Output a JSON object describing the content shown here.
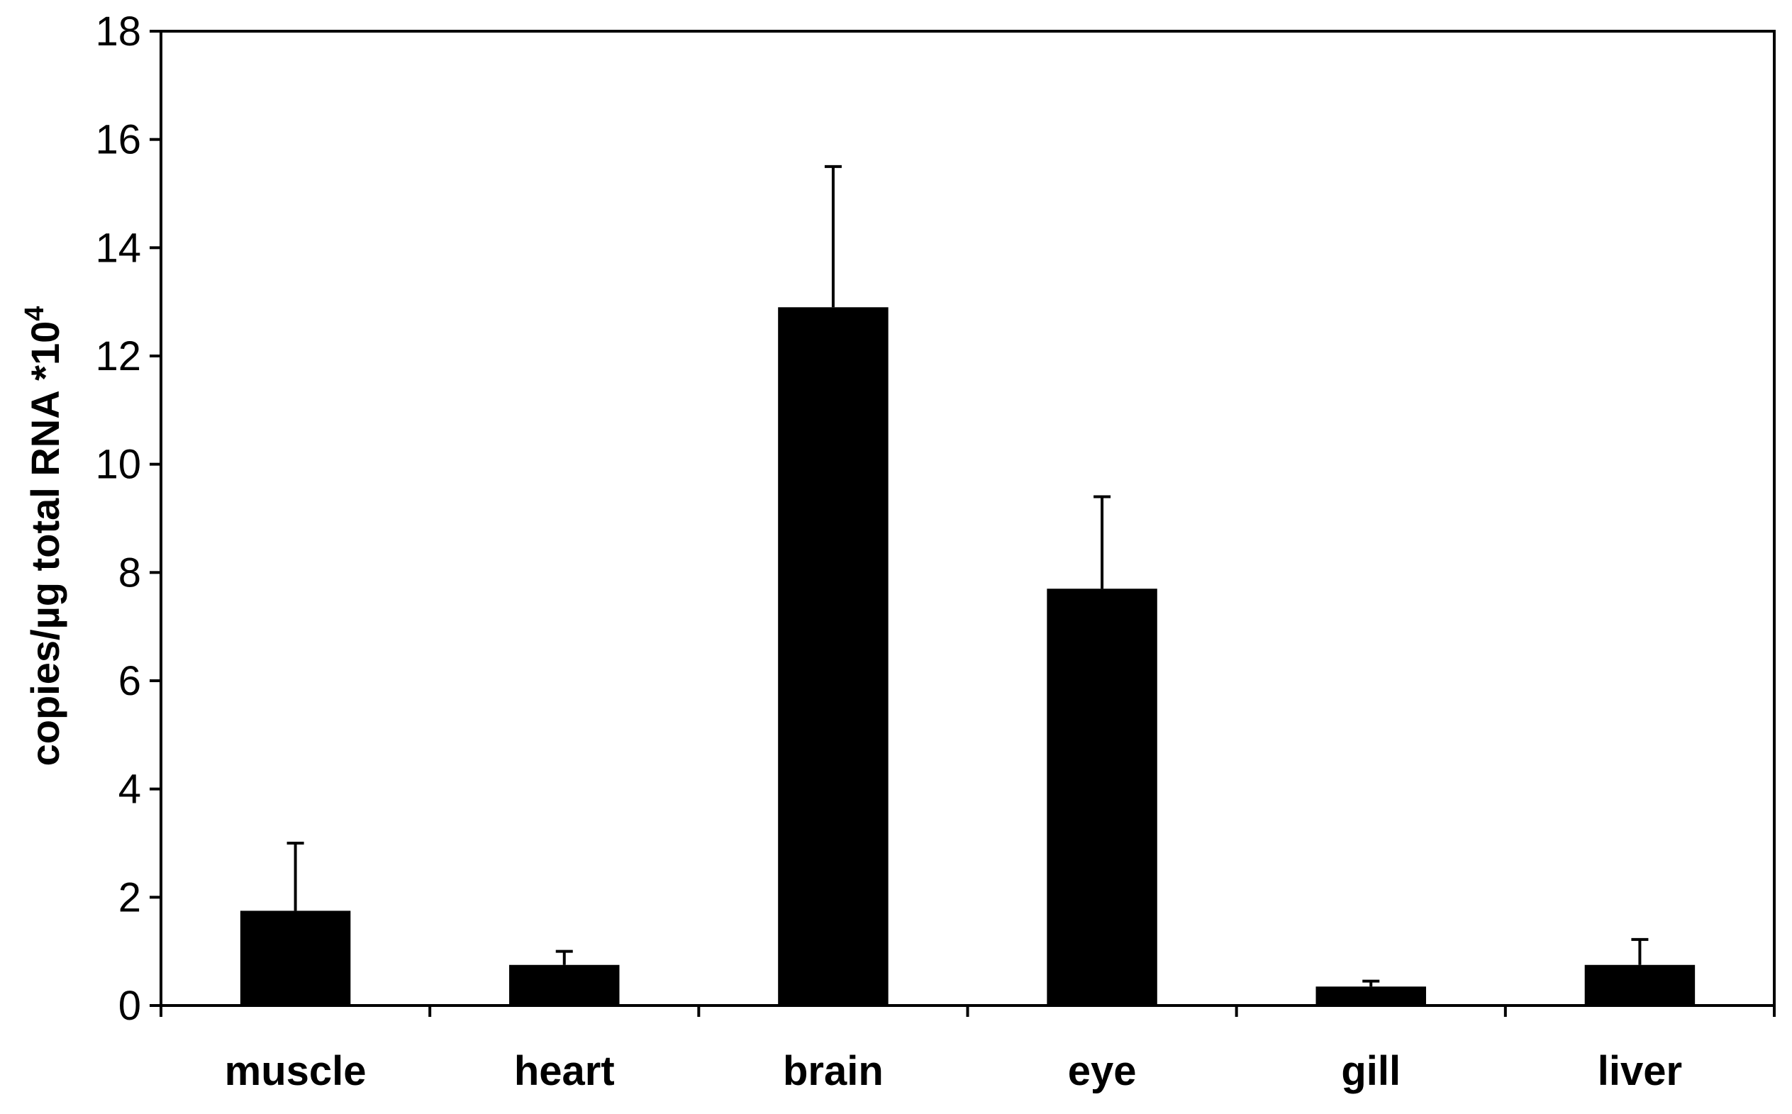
{
  "chart_data": {
    "type": "bar",
    "title": "",
    "xlabel": "",
    "ylabel": {
      "prefix": "copies/µg total RNA *10",
      "superscript": "4"
    },
    "ylim": [
      0,
      18
    ],
    "yticks": [
      0,
      2,
      4,
      6,
      8,
      10,
      12,
      14,
      16,
      18
    ],
    "categories": [
      "muscle",
      "heart",
      "brain",
      "eye",
      "gill",
      "liver"
    ],
    "values": [
      1.75,
      0.75,
      12.9,
      7.7,
      0.35,
      0.75
    ],
    "error_upper": [
      1.25,
      0.25,
      2.6,
      1.7,
      0.1,
      0.47
    ],
    "grid": false,
    "legend": "none",
    "bar_color": "#000000"
  }
}
